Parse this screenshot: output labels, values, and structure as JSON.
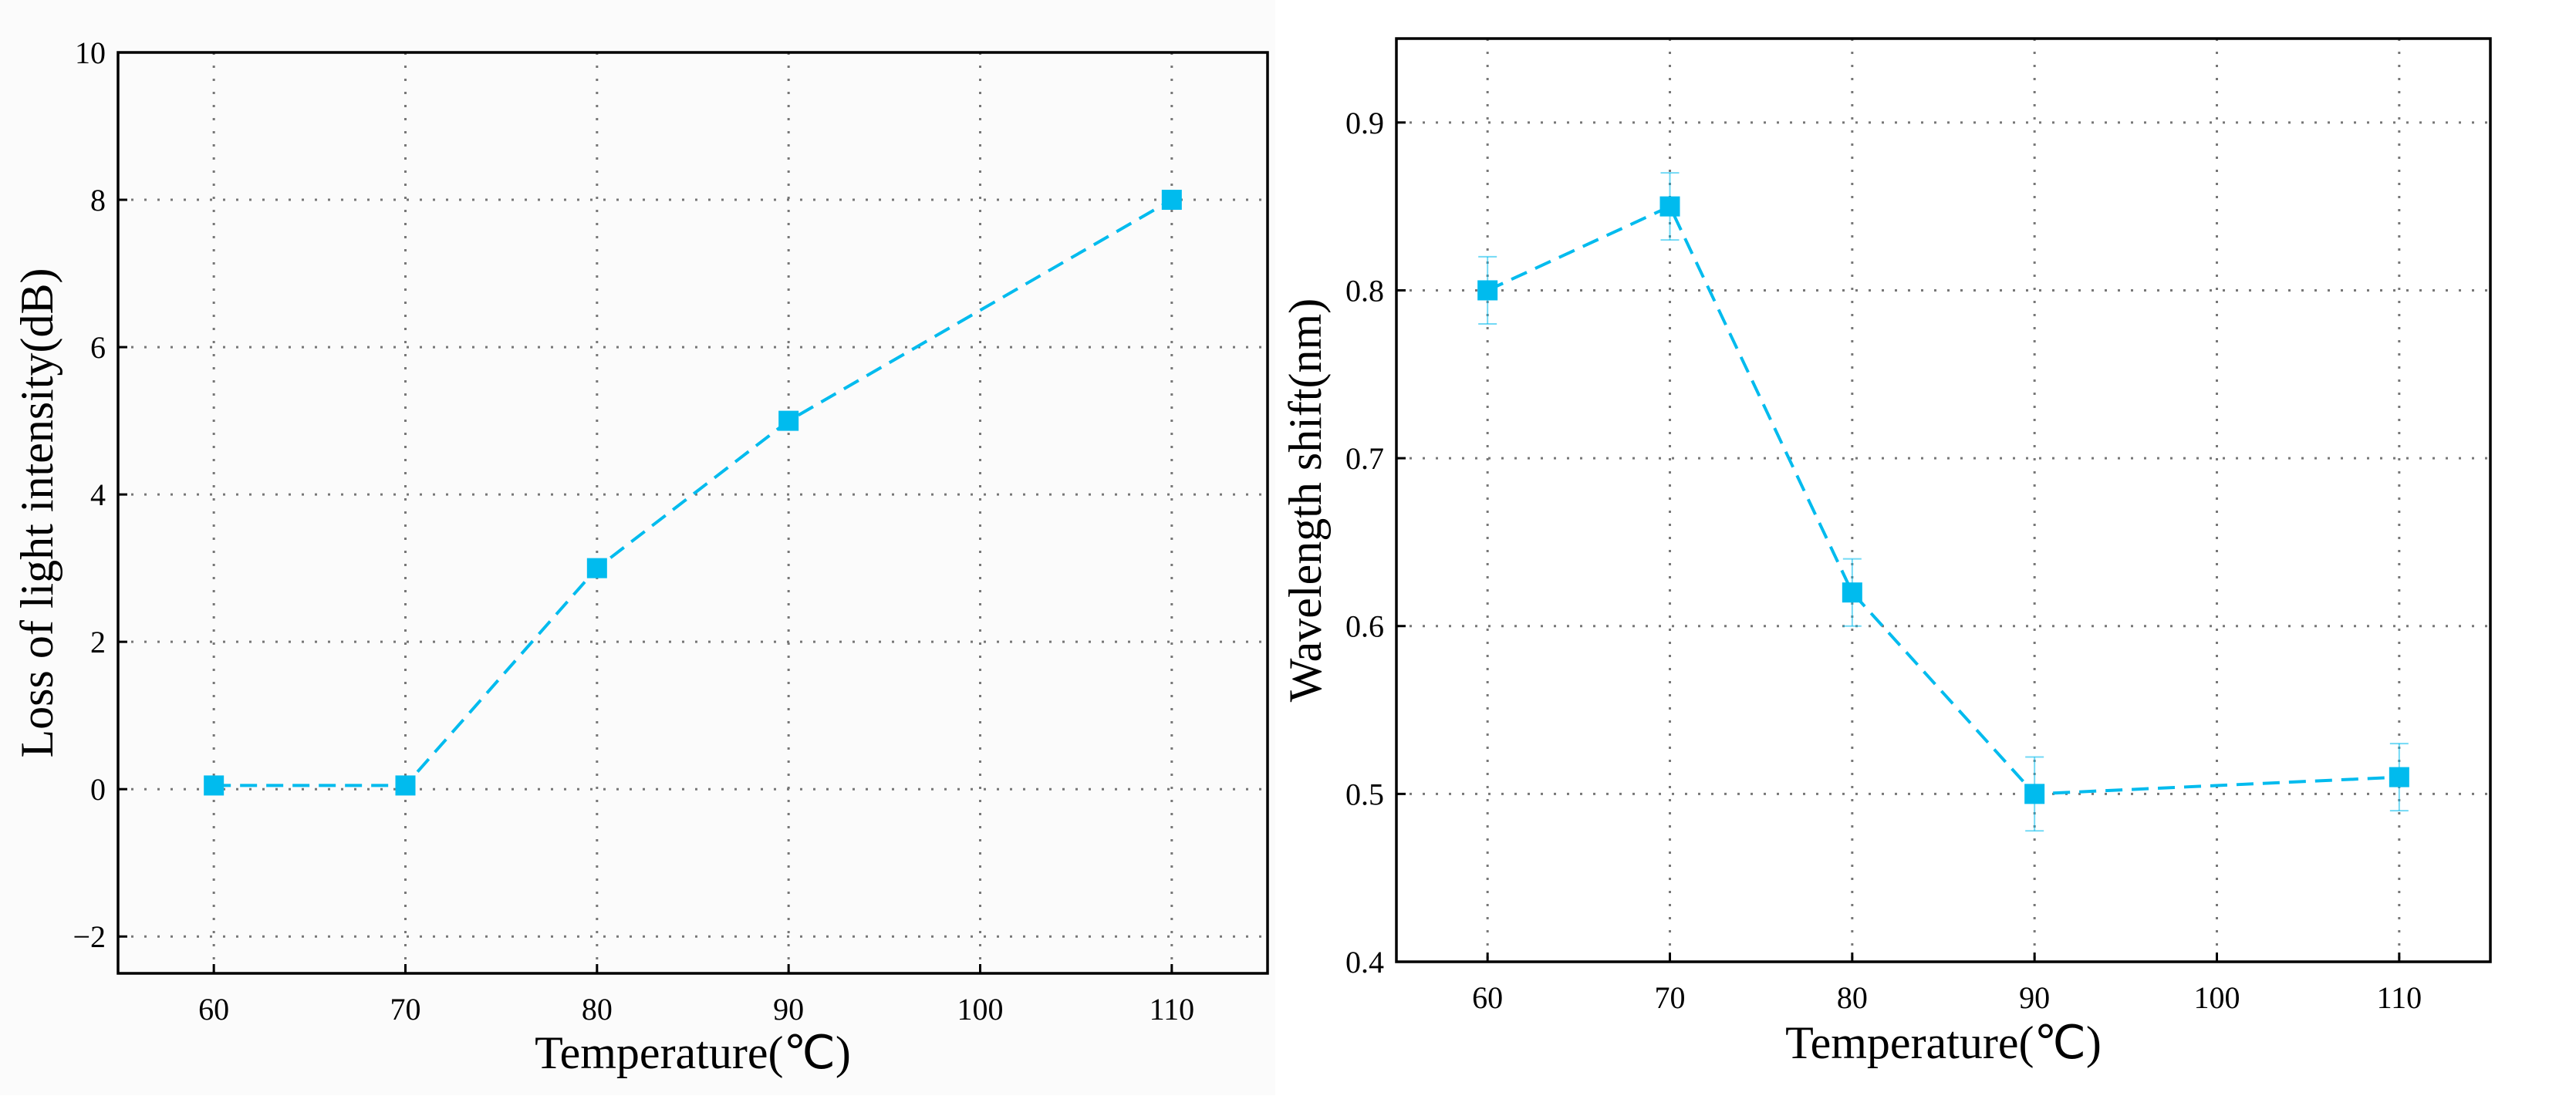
{
  "colors": {
    "series": "#00BBEE",
    "grid": "#777777",
    "frame": "#000000",
    "panel_bg_left": "#FBFBFB",
    "panel_bg_right": "#FFFFFF"
  },
  "chart_data": [
    {
      "type": "line",
      "title": "",
      "xlabel": "Temperature(℃)",
      "ylabel": "Loss of light intensity(dB)",
      "xlim": [
        55,
        115
      ],
      "ylim": [
        -2.5,
        10
      ],
      "xticks": [
        60,
        70,
        80,
        90,
        100,
        110
      ],
      "yticks": [
        -2,
        0,
        2,
        4,
        6,
        8,
        10
      ],
      "ytick_labels": [
        "−2",
        "0",
        "2",
        "4",
        "6",
        "8",
        "10"
      ],
      "grid": true,
      "series": [
        {
          "name": "Loss of light intensity",
          "x": [
            60,
            70,
            80,
            90,
            110
          ],
          "y": [
            0.05,
            0.05,
            3.0,
            5.0,
            8.0
          ],
          "marker": "square",
          "linestyle": "dashed"
        }
      ]
    },
    {
      "type": "line",
      "title": "",
      "xlabel": "Temperature(℃)",
      "ylabel": "Wavelength shift(nm)",
      "xlim": [
        55,
        115
      ],
      "ylim": [
        0.4,
        0.95
      ],
      "xticks": [
        60,
        70,
        80,
        90,
        100,
        110
      ],
      "yticks": [
        0.4,
        0.5,
        0.6,
        0.7,
        0.8,
        0.9
      ],
      "ytick_labels": [
        "0.4",
        "0.5",
        "0.6",
        "0.7",
        "0.8",
        "0.9"
      ],
      "grid": true,
      "series": [
        {
          "name": "Wavelength shift",
          "x": [
            60,
            70,
            80,
            90,
            110
          ],
          "y": [
            0.8,
            0.85,
            0.62,
            0.5,
            0.51
          ],
          "error": [
            0.02,
            0.02,
            0.02,
            0.022,
            0.02
          ],
          "marker": "square",
          "linestyle": "dashed"
        }
      ]
    }
  ]
}
